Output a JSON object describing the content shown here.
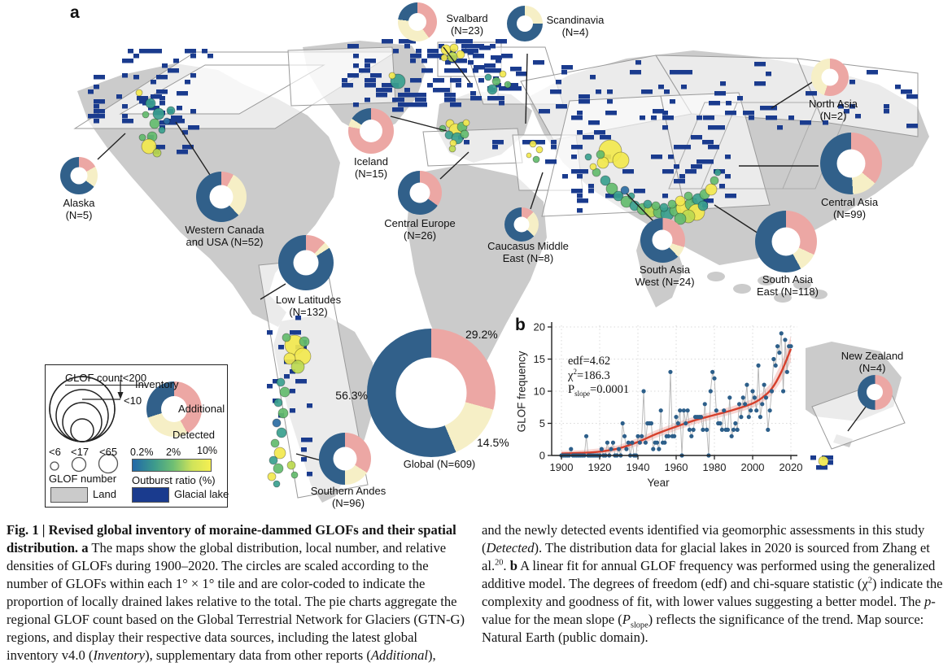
{
  "panel_a": "a",
  "panel_b": "b",
  "colors": {
    "inventory": "#31608a",
    "additional": "#eca7a4",
    "detected": "#f6efc6",
    "glacial_lake": "#1a3b8e",
    "land": "#cbcbcb",
    "tile_fill": "rgba(255,255,255,0.62)",
    "tile_stroke": "#9a9a9a",
    "fit_line": "#d6402c",
    "fit_band": "rgba(224,90,80,0.25)",
    "point": "#2d5f8a",
    "ratio_low": "#2268a8",
    "ratio_mid": "#6fbf73",
    "ratio_high": "#f5ef52"
  },
  "global_pcts": {
    "additional": "29.2%",
    "detected": "14.5%",
    "inventory": "56.3%"
  },
  "legend": {
    "size_title": "GLOF count<200",
    "size_min": "<10",
    "inventory_label": "Inventory",
    "additional_label": "Additional",
    "detected_label": "Detected",
    "count_ticks": [
      "<6",
      "<17",
      "<65"
    ],
    "count_label": "GLOF number",
    "ratio_ticks": [
      "0.2%",
      "2%",
      "10%"
    ],
    "ratio_label": "Outburst ratio (%)",
    "land_label": "Land",
    "lake_label": "Glacial lake",
    "sample_segments": {
      "additional": 42,
      "detected": 28,
      "inventory": 30
    }
  },
  "chart_data": [
    {
      "type": "pie",
      "title": "Regional GLOF counts and data-source shares (donut charts on map)",
      "legend_entries": [
        "Additional",
        "Detected",
        "Inventory"
      ],
      "regions": [
        {
          "id": "svalbard",
          "label": "Svalbard\n(N=23)",
          "n": 23,
          "additional": 40,
          "detected": 37,
          "inventory": 23
        },
        {
          "id": "scandinavia",
          "label": "Scandinavia\n(N=4)",
          "n": 4,
          "additional": 0,
          "detected": 25,
          "inventory": 75
        },
        {
          "id": "north-asia",
          "label": "North Asia\n(N=2)",
          "n": 2,
          "additional": 55,
          "detected": 45,
          "inventory": 0
        },
        {
          "id": "alaska",
          "label": "Alaska\n(N=5)",
          "n": 5,
          "additional": 17,
          "detected": 18,
          "inventory": 65
        },
        {
          "id": "western-canada",
          "label": "Western Canada\nand USA (N=52)",
          "n": 52,
          "additional": 8,
          "detected": 30,
          "inventory": 62
        },
        {
          "id": "iceland",
          "label": "Iceland\n(N=15)",
          "n": 15,
          "additional": 78,
          "detected": 6,
          "inventory": 16
        },
        {
          "id": "central-europe",
          "label": "Central Europe\n(N=26)",
          "n": 26,
          "additional": 35,
          "detected": 0,
          "inventory": 65
        },
        {
          "id": "caucasus",
          "label": "Caucasus Middle\nEast (N=8)",
          "n": 8,
          "additional": 12,
          "detected": 25,
          "inventory": 63
        },
        {
          "id": "south-asia-west",
          "label": "South Asia\nWest (N=24)",
          "n": 24,
          "additional": 30,
          "detected": 8,
          "inventory": 62
        },
        {
          "id": "central-asia",
          "label": "Central Asia\n(N=99)",
          "n": 99,
          "additional": 36,
          "detected": 13,
          "inventory": 51
        },
        {
          "id": "south-asia-east",
          "label": "South Asia\nEast (N=118)",
          "n": 118,
          "additional": 32,
          "detected": 10,
          "inventory": 58
        },
        {
          "id": "low-latitudes",
          "label": "Low Latitudes\n(N=132)",
          "n": 132,
          "additional": 12,
          "detected": 4,
          "inventory": 84
        },
        {
          "id": "southern-andes",
          "label": "Southern Andes\n(N=96)",
          "n": 96,
          "additional": 34,
          "detected": 16,
          "inventory": 50
        },
        {
          "id": "new-zealand",
          "label": "New Zealand\n(N=4)",
          "n": 4,
          "additional": 50,
          "detected": 0,
          "inventory": 50
        },
        {
          "id": "global",
          "label": "Global (N=609)",
          "n": 609,
          "additional": 29.2,
          "detected": 14.5,
          "inventory": 56.3
        }
      ]
    },
    {
      "type": "scatter",
      "title": "Annual GLOF frequency with generalized additive model fit",
      "xlabel": "Year",
      "ylabel": "GLOF frequency",
      "xlim": [
        1900,
        2020
      ],
      "ylim": [
        0,
        20
      ],
      "xticks": [
        1900,
        1920,
        1940,
        1960,
        1980,
        2000,
        2020
      ],
      "yticks": [
        0,
        5,
        10,
        15,
        20
      ],
      "annotations": [
        [
          {
            "t": "edf=4.62"
          }
        ],
        [
          {
            "t": "χ"
          },
          {
            "t": "2",
            "s": "sup"
          },
          {
            "t": "=186.3"
          }
        ],
        [
          {
            "t": "P"
          },
          {
            "t": "slope",
            "s": "sub"
          },
          {
            "t": "=0.0001"
          }
        ]
      ],
      "x_start": 1900,
      "values": [
        0,
        0,
        0,
        0,
        0,
        1,
        0,
        0,
        0,
        0,
        0,
        0,
        0,
        3,
        0,
        0,
        0,
        0,
        0,
        0,
        0,
        1,
        0,
        0,
        2,
        0,
        1,
        2,
        0,
        0,
        1,
        0,
        5,
        3,
        1,
        2,
        0,
        2,
        0,
        0,
        3,
        2,
        3,
        10,
        2,
        5,
        5,
        5,
        1,
        2,
        2,
        1,
        7,
        2,
        2,
        3,
        3,
        13,
        3,
        3,
        6,
        5,
        7,
        0,
        7,
        5,
        7,
        4,
        3,
        4,
        6,
        6,
        6,
        6,
        4,
        8,
        4,
        0,
        10,
        13,
        12,
        7,
        5,
        5,
        4,
        7,
        4,
        4,
        9,
        3,
        4,
        5,
        4,
        8,
        6,
        9,
        8,
        11,
        6,
        7,
        10,
        9,
        7,
        14,
        6,
        8,
        11,
        9,
        4,
        7,
        10,
        15,
        14,
        17,
        16,
        19,
        10,
        18,
        13,
        17,
        17
      ],
      "fit": {
        "x": [
          1900,
          1910,
          1920,
          1930,
          1940,
          1950,
          1960,
          1970,
          1980,
          1990,
          2000,
          2005,
          2010,
          2015,
          2020
        ],
        "y": [
          0.3,
          0.4,
          0.6,
          1.1,
          2.1,
          3.4,
          4.5,
          5.5,
          6.3,
          7.1,
          8.1,
          9.0,
          10.4,
          13.0,
          16.6
        ],
        "upper": [
          0.7,
          0.8,
          1.1,
          1.6,
          2.7,
          4.0,
          5.1,
          6.1,
          6.9,
          7.7,
          8.8,
          9.8,
          11.4,
          14.4,
          18.6
        ],
        "lower": [
          0.0,
          0.1,
          0.2,
          0.6,
          1.5,
          2.8,
          3.9,
          4.9,
          5.7,
          6.5,
          7.4,
          8.2,
          9.4,
          11.6,
          14.6
        ]
      }
    }
  ],
  "caption": {
    "left": [
      {
        "t": "Fig. 1 | Revised global inventory of moraine-dammed GLOFs and their spatial distribution. ",
        "s": "b"
      },
      {
        "t": "a",
        "s": "b"
      },
      {
        "t": " The maps show the global distribution, local number, and relative densities of GLOFs during 1900–2020. The circles are scaled according to the number of GLOFs within each 1° × 1° tile and are color-coded to indicate the proportion of locally drained lakes relative to the total. The pie charts aggregate the regional GLOF count based on the Global Terrestrial Network for Glaciers (GTN-G) regions, and display their respective data sources, including the latest global inventory v4.0 ("
      },
      {
        "t": "Inventory",
        "s": "i"
      },
      {
        "t": "), supplementary data from other reports ("
      },
      {
        "t": "Additional",
        "s": "i"
      },
      {
        "t": "),"
      }
    ],
    "right": [
      {
        "t": "and the newly detected events identified via geomorphic assessments in this study ("
      },
      {
        "t": "Detected",
        "s": "i"
      },
      {
        "t": "). The distribution data for glacial lakes in 2020 is sourced from Zhang et al."
      },
      {
        "t": "20",
        "s": "sup"
      },
      {
        "t": ". "
      },
      {
        "t": "b",
        "s": "b"
      },
      {
        "t": " A linear fit for annual GLOF frequency was performed using the generalized additive model. The degrees of freedom (edf) and chi-square statistic (χ"
      },
      {
        "t": "2",
        "s": "sup"
      },
      {
        "t": ") indicate the complexity and goodness of fit, with lower values suggesting a better model. The "
      },
      {
        "t": "p",
        "s": "i"
      },
      {
        "t": "-value for the mean slope ("
      },
      {
        "t": "P",
        "s": "i"
      },
      {
        "t": "slope",
        "s": "sub"
      },
      {
        "t": ") reflects the significance of the trend. Map source: Natural Earth (public domain)."
      }
    ]
  }
}
